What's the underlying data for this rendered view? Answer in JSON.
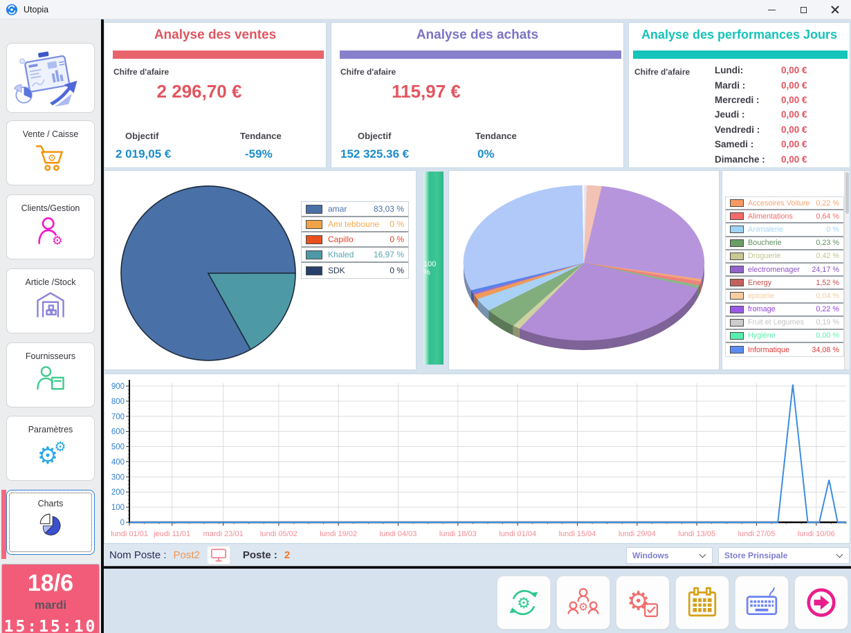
{
  "window": {
    "title": "Utopia"
  },
  "sidebar": {
    "items": [
      {
        "id": "vente",
        "label": "Vente / Caisse"
      },
      {
        "id": "clients",
        "label": "Clients/Gestion"
      },
      {
        "id": "article",
        "label": "Article /Stock"
      },
      {
        "id": "fournisseurs",
        "label": "Fournisseurs"
      },
      {
        "id": "parametres",
        "label": "Paramètres"
      },
      {
        "id": "charts",
        "label": "Charts",
        "selected": true
      }
    ],
    "date": {
      "day": "18/6",
      "weekday": "mardi",
      "time": "15:15:10"
    }
  },
  "cards": {
    "ventes": {
      "title": "Analyse des ventes",
      "accent": "#e8646c",
      "chiffre_label": "Chifre d'afaire",
      "chiffre": "2 296,70 €",
      "objectif_label": "Objectif",
      "objectif": "2 019,05 €",
      "tendance_label": "Tendance",
      "tendance": "-59%"
    },
    "achats": {
      "title": "Analyse des achats",
      "accent": "#8781cb",
      "chiffre_label": "Chifre d'afaire",
      "chiffre": "115,97 €",
      "objectif_label": "Objectif",
      "objectif": "152 325.36 €",
      "tendance_label": "Tendance",
      "tendance": "0%"
    },
    "jours": {
      "title": "Analyse des performances Jours",
      "accent": "#16c4ba",
      "chiffre_label": "Chifre d'afaire",
      "days": [
        {
          "name": "Lundi:",
          "value": "0,00 €"
        },
        {
          "name": "Mardi :",
          "value": "0,00 €"
        },
        {
          "name": "Mercredi :",
          "value": "0,00 €"
        },
        {
          "name": "Jeudi :",
          "value": "0,00 €"
        },
        {
          "name": "Vendredi :",
          "value": "0,00 €"
        },
        {
          "name": "Samedi :",
          "value": "0,00 €"
        },
        {
          "name": "Dimanche :",
          "value": "0,00 €"
        }
      ]
    }
  },
  "gauge": {
    "label": "100 %"
  },
  "footer": {
    "nom_poste_label": "Nom Poste :",
    "nom_poste": "Post2",
    "poste_label": "Poste :",
    "poste": "2",
    "select_os": "Windows",
    "select_store": "Store Prinsipale"
  },
  "toolbar": {
    "buttons": [
      "sync",
      "team",
      "gear-check",
      "calendar",
      "keyboard",
      "exit"
    ]
  },
  "chart_data": [
    {
      "type": "pie",
      "name": "ventes-par-vendeur",
      "legend_position": "right",
      "items": [
        {
          "label": "amar",
          "value_pct": 83.03,
          "value_text": "83,03 %",
          "color": "#4a70a8",
          "text_color": "#4a70a8"
        },
        {
          "label": "Ami tebboune",
          "value_pct": 0,
          "value_text": "0 %",
          "color": "#f0a348",
          "text_color": "#f5a952"
        },
        {
          "label": "Capillo",
          "value_pct": 0,
          "value_text": "0 %",
          "color": "#e8511e",
          "text_color": "#e8402a"
        },
        {
          "label": "Khaled",
          "value_pct": 16.97,
          "value_text": "16,97 %",
          "color": "#4d9aa6",
          "text_color": "#58a5b2"
        },
        {
          "label": "SDK",
          "value_pct": 0,
          "value_text": "0 %",
          "color": "#27406b",
          "text_color": "#2a3550"
        }
      ],
      "render": {
        "start_deg": 151,
        "stroke": "#1c2b3a",
        "segments": [
          {
            "color": "#4a70a8",
            "pct": 83.03
          },
          {
            "color": "#4d9aa6",
            "pct": 16.97
          }
        ]
      }
    },
    {
      "type": "pie",
      "name": "achats-par-famille",
      "style": "3d",
      "legend_position": "right",
      "legend_scrollable": true,
      "items": [
        {
          "label": "Accesoires Voiture",
          "value_pct": 0.22,
          "value_text": "0,22 %",
          "color": "#f59a62",
          "text_color": "#f5a370"
        },
        {
          "label": "Alimentations",
          "value_pct": 0.64,
          "value_text": "0,64 %",
          "color": "#f56a6a",
          "text_color": "#f56a6a"
        },
        {
          "label": "Animalerie",
          "value_pct": 0,
          "value_text": "0 %",
          "color": "#9ed2f7",
          "text_color": "#a5d5f7"
        },
        {
          "label": "Boucherie",
          "value_pct": 0.23,
          "value_text": "0,23 %",
          "color": "#699e66",
          "text_color": "#5f8f60"
        },
        {
          "label": "Droguerie",
          "value_pct": 0.42,
          "value_text": "0,42 %",
          "color": "#c8c894",
          "text_color": "#c2c28e"
        },
        {
          "label": "electromenager",
          "value_pct": 24.17,
          "value_text": "24,17 %",
          "color": "#9163cb",
          "text_color": "#8c52c8"
        },
        {
          "label": "Energy",
          "value_pct": 1.52,
          "value_text": "1,52 %",
          "color": "#c2615f",
          "text_color": "#c2504e"
        },
        {
          "label": "epicerie",
          "value_pct": 0.04,
          "value_text": "0,04 %",
          "color": "#f8cda2",
          "text_color": "#f5cb9e"
        },
        {
          "label": "fromage",
          "value_pct": 0.22,
          "value_text": "0,22 %",
          "color": "#9b59e8",
          "text_color": "#9440e0"
        },
        {
          "label": "Fruit et Legumes",
          "value_pct": 0.19,
          "value_text": "0,19 %",
          "color": "#cccccc",
          "text_color": "#c4c4c4"
        },
        {
          "label": "Hygiène",
          "value_pct": 0.0,
          "value_text": "0,00 %",
          "color": "#57efae",
          "text_color": "#57efae"
        },
        {
          "label": "Informatique",
          "value_pct": 34.08,
          "value_text": "34,08 %",
          "color": "#5b8cf2",
          "text_color": "#e03838"
        }
      ],
      "render_segments": [
        {
          "color": "#e8e4f2",
          "pct": 0.4
        },
        {
          "color": "#f2c3b4",
          "pct": 2.0
        },
        {
          "color": "#b795dd",
          "pct": 26.0
        },
        {
          "color": "#f5a878",
          "pct": 0.5
        },
        {
          "color": "#f08080",
          "pct": 0.8
        },
        {
          "color": "#8ab88a",
          "pct": 0.6
        },
        {
          "color": "#b28dd8",
          "pct": 28.7
        },
        {
          "color": "#ced2a2",
          "pct": 1.0
        },
        {
          "color": "#82ad7c",
          "pct": 4.5
        },
        {
          "color": "#a9d1f6",
          "pct": 2.8
        },
        {
          "color": "#f09a58",
          "pct": 1.0
        },
        {
          "color": "#9a70d2",
          "pct": 0.4
        },
        {
          "color": "#5583ea",
          "pct": 0.6
        },
        {
          "color": "#b0c9f8",
          "pct": 30.5
        },
        {
          "color": "#f8f8ff",
          "pct": 0.2
        }
      ]
    },
    {
      "type": "line",
      "name": "ventes-par-jour",
      "color": "#3b8de0",
      "grid": true,
      "ylim": [
        0,
        900
      ],
      "y_tick_step": 100,
      "x_axis_span_days": 168,
      "x_tick_labels": [
        "lundi 01/01",
        "jeudi 11/01",
        "mardi 23/01",
        "lundi 05/02",
        "lundi 19/02",
        "lundi 04/03",
        "lundi 18/03",
        "lundi 01/04",
        "lundi 15/04",
        "lundi 29/04",
        "lundi 13/05",
        "lundi 27/05",
        "lundi 10/06"
      ],
      "x_tick_days": [
        0,
        10,
        22,
        35,
        49,
        63,
        77,
        91,
        105,
        119,
        133,
        147,
        161
      ],
      "points_day_value": [
        [
          0,
          0
        ],
        [
          152,
          0
        ],
        [
          155.5,
          910
        ],
        [
          159,
          0
        ],
        [
          161.7,
          0
        ],
        [
          164,
          280
        ],
        [
          166,
          0
        ],
        [
          168,
          0
        ]
      ]
    }
  ]
}
